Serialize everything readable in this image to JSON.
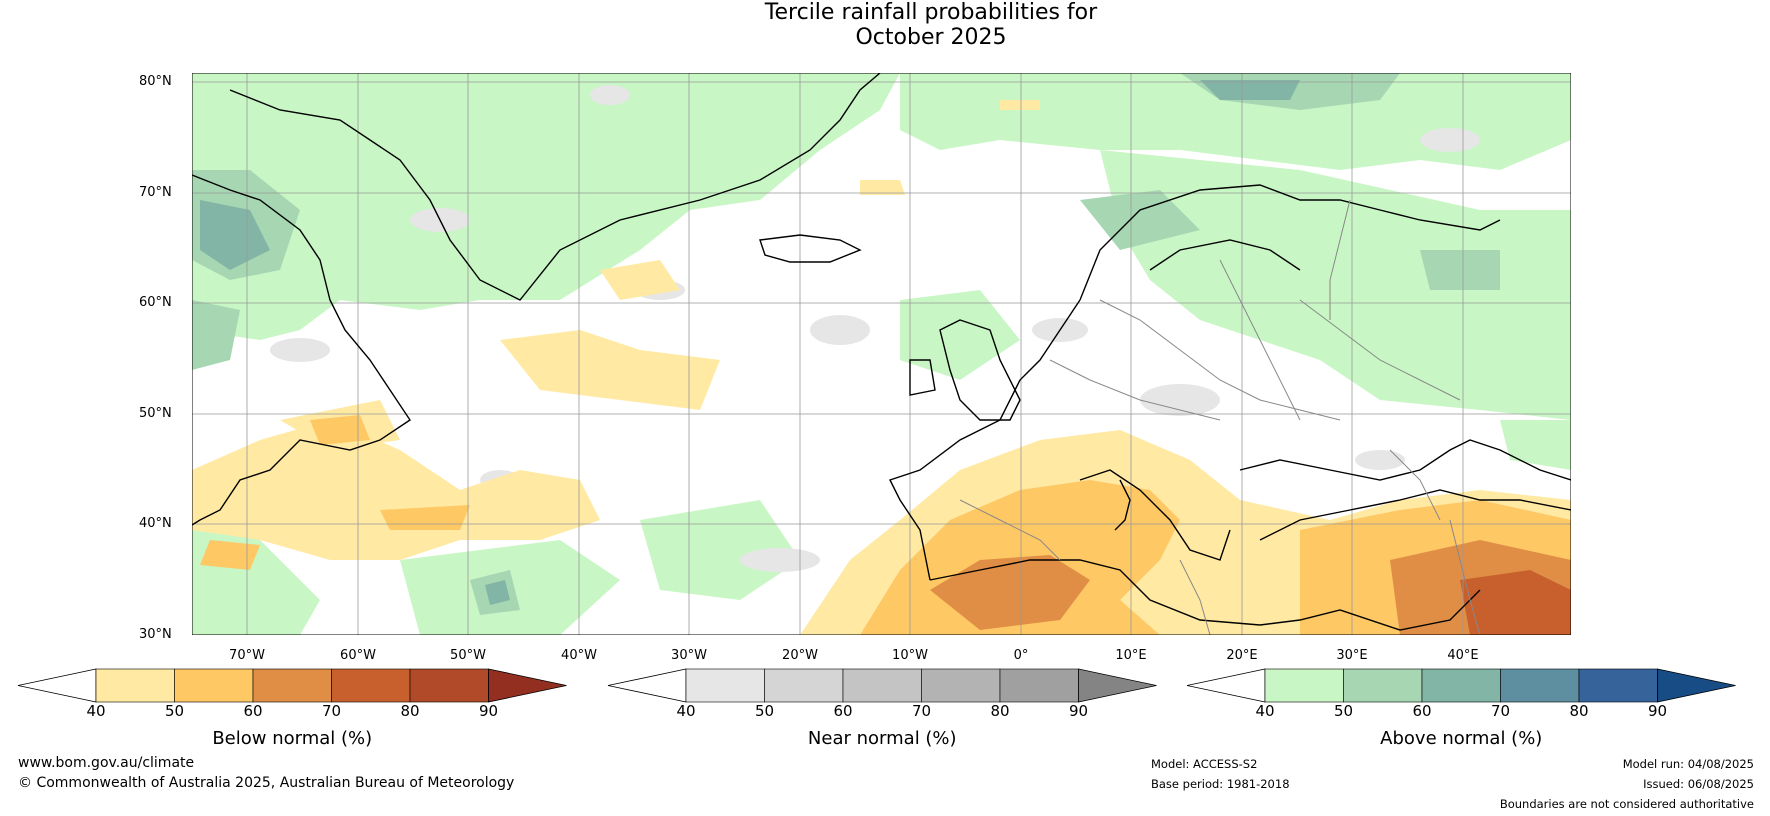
{
  "title_line1": "Tercile rainfall probabilities for",
  "title_line2": "October 2025",
  "lat_labels": [
    "80°N",
    "70°N",
    "60°N",
    "50°N",
    "40°N",
    "30°N"
  ],
  "lon_labels": [
    "70°W",
    "60°W",
    "50°W",
    "40°W",
    "30°W",
    "20°W",
    "10°W",
    "0°",
    "10°E",
    "20°E",
    "30°E",
    "40°E"
  ],
  "colorbars": [
    {
      "title": "Below normal (%)",
      "ticks": [
        "40",
        "50",
        "60",
        "70",
        "80",
        "90"
      ],
      "colors": [
        "#ffe9a3",
        "#fec865",
        "#e08e45",
        "#c8602d",
        "#b04a29",
        "#932f21"
      ]
    },
    {
      "title": "Near normal (%)",
      "ticks": [
        "40",
        "50",
        "60",
        "70",
        "80",
        "90"
      ],
      "colors": [
        "#e6e6e6",
        "#d5d5d5",
        "#c4c4c4",
        "#b3b3b3",
        "#a0a0a0",
        "#848484"
      ]
    },
    {
      "title": "Above normal (%)",
      "ticks": [
        "40",
        "50",
        "60",
        "70",
        "80",
        "90"
      ],
      "colors": [
        "#c8f6c5",
        "#a6d7b2",
        "#82b5a6",
        "#5d8fa0",
        "#35639a",
        "#174c84"
      ]
    }
  ],
  "footer": {
    "website": "www.bom.gov.au/climate",
    "copyright": "© Commonwealth of Australia 2025, Australian Bureau of Meteorology",
    "model": "Model: ACCESS-S2",
    "base_period": "Base period: 1981-2018",
    "model_run": "Model run: 04/08/2025",
    "issued": "Issued: 06/08/2025",
    "disclaimer": "Boundaries are not considered authoritative"
  }
}
